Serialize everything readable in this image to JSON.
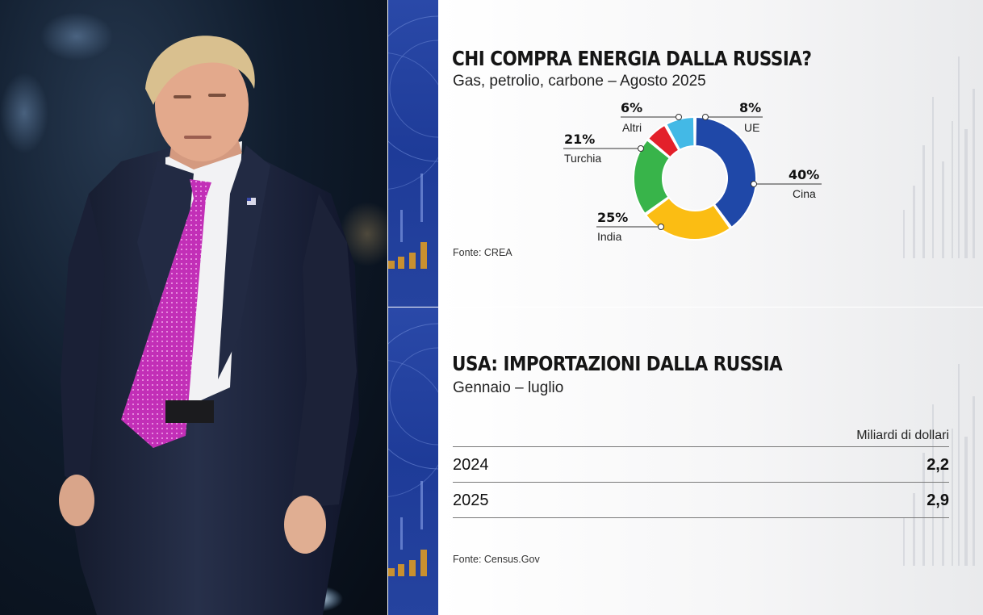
{
  "photo": {
    "description_icon": "portrait-photo"
  },
  "chart_data": [
    {
      "type": "pie",
      "variant": "donut",
      "title": "CHI COMPRA ENERGIA DALLA RUSSIA?",
      "subtitle": "Gas, petrolio, carbone – Agosto 2025",
      "source": "Fonte: CREA",
      "slices": [
        {
          "label": "Cina",
          "value": 40,
          "pct_label": "40%",
          "color": "#1f48a8"
        },
        {
          "label": "India",
          "value": 25,
          "pct_label": "25%",
          "color": "#fbbd13"
        },
        {
          "label": "Turchia",
          "value": 21,
          "pct_label": "21%",
          "color": "#38b44a"
        },
        {
          "label": "Altri",
          "value": 6,
          "pct_label": "6%",
          "color": "#e3202a"
        },
        {
          "label": "UE",
          "value": 8,
          "pct_label": "8%",
          "color": "#43b9e6"
        }
      ]
    },
    {
      "type": "table",
      "title": "USA: IMPORTAZIONI DALLA RUSSIA",
      "subtitle": "Gennaio – luglio",
      "unit": "Miliardi di dollari",
      "source": "Fonte: Census.Gov",
      "rows": [
        {
          "year": "2024",
          "value": "2,2"
        },
        {
          "year": "2025",
          "value": "2,9"
        }
      ]
    }
  ]
}
